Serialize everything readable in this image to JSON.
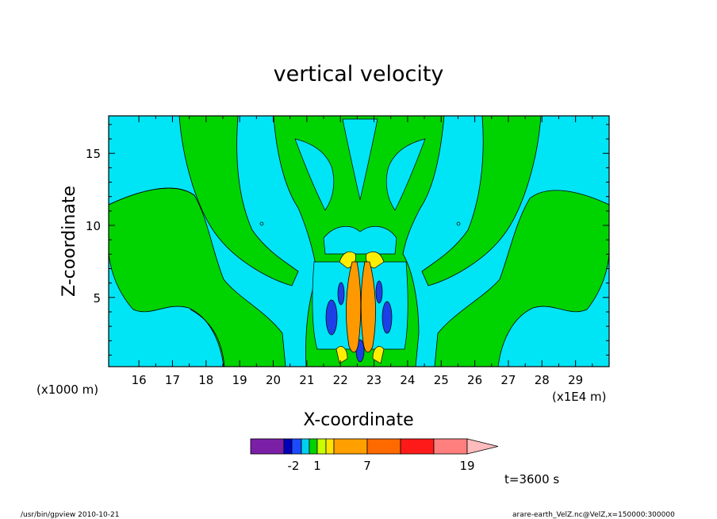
{
  "chart_data": {
    "type": "heatmap",
    "title": "vertical velocity",
    "xlabel": "X-coordinate",
    "ylabel": "Z-coordinate",
    "x_unit": "(x1E4 m)",
    "y_unit": "(x1000 m)",
    "x_ticks": [
      "16",
      "17",
      "18",
      "19",
      "20",
      "21",
      "22",
      "23",
      "24",
      "25",
      "26",
      "27",
      "28",
      "29"
    ],
    "y_ticks": [
      "5",
      "10",
      "15"
    ],
    "xlim": [
      15.1,
      30.0
    ],
    "ylim": [
      0.2,
      17.6
    ],
    "time_label": "t=3600 s",
    "colorbar": {
      "tick_labels": [
        {
          "label": "-2",
          "value": -2
        },
        {
          "label": "1",
          "value": 1
        },
        {
          "label": "7",
          "value": 7
        },
        {
          "label": "19",
          "value": 19
        }
      ],
      "colors": [
        "#7a1fa6",
        "#0000bb",
        "#1c4bff",
        "#00d0f0",
        "#00d200",
        "#c8ff00",
        "#ffe400",
        "#ff9f00",
        "#ff6a00",
        "#ff1a1a",
        "#ff7f7f",
        "#ffbcbc"
      ]
    },
    "contour_colors": {
      "strong_down": "#1c40e6",
      "weak_down": "#00e5f5",
      "weak_up": "#00d400",
      "moderate_up": "#ffee00",
      "strong_up": "#ff9900"
    }
  },
  "footer": {
    "left": "/usr/bin/gpview   2010-10-21",
    "right": "arare-earth_VelZ.nc@VelZ,x=150000:300000"
  }
}
